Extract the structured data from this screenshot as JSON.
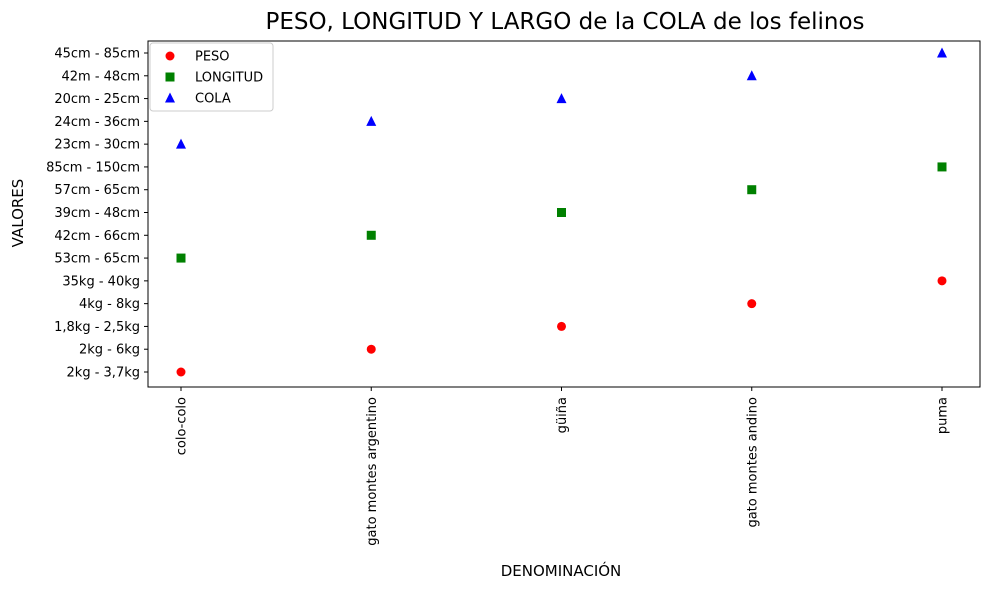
{
  "chart_data": {
    "type": "scatter",
    "title": "PESO, LONGITUD Y LARGO de la COLA de los felinos",
    "xlabel": "DENOMINACIÓN",
    "ylabel": "VALORES",
    "categories": [
      "colo-colo",
      "gato montes argentino",
      "güiña",
      "gato montes andino",
      "puma"
    ],
    "y_categories": [
      "2kg - 3,7kg",
      "2kg - 6kg ",
      "1,8kg - 2,5kg",
      "4kg - 8kg",
      "35kg - 40kg",
      "53cm - 65cm",
      "42cm - 66cm ",
      "39cm - 48cm",
      "57cm - 65cm",
      "85cm - 150cm",
      "23cm - 30cm",
      "24cm - 36cm",
      "20cm - 25cm",
      "42m - 48cm",
      "45cm - 85cm"
    ],
    "series": [
      {
        "name": "PESO",
        "color": "#ff0000",
        "marker": "circle",
        "values": [
          "2kg - 3,7kg",
          "2kg - 6kg ",
          "1,8kg - 2,5kg",
          "4kg - 8kg",
          "35kg - 40kg"
        ]
      },
      {
        "name": "LONGITUD",
        "color": "#008000",
        "marker": "square",
        "values": [
          "53cm - 65cm",
          "42cm - 66cm ",
          "39cm - 48cm",
          "57cm - 65cm",
          "85cm - 150cm"
        ]
      },
      {
        "name": "COLA",
        "color": "#0000ff",
        "marker": "triangle",
        "values": [
          "23cm - 30cm",
          "24cm - 36cm",
          "20cm - 25cm",
          "42m - 48cm",
          "45cm - 85cm"
        ]
      }
    ],
    "grid": false,
    "legend": "top-left"
  }
}
